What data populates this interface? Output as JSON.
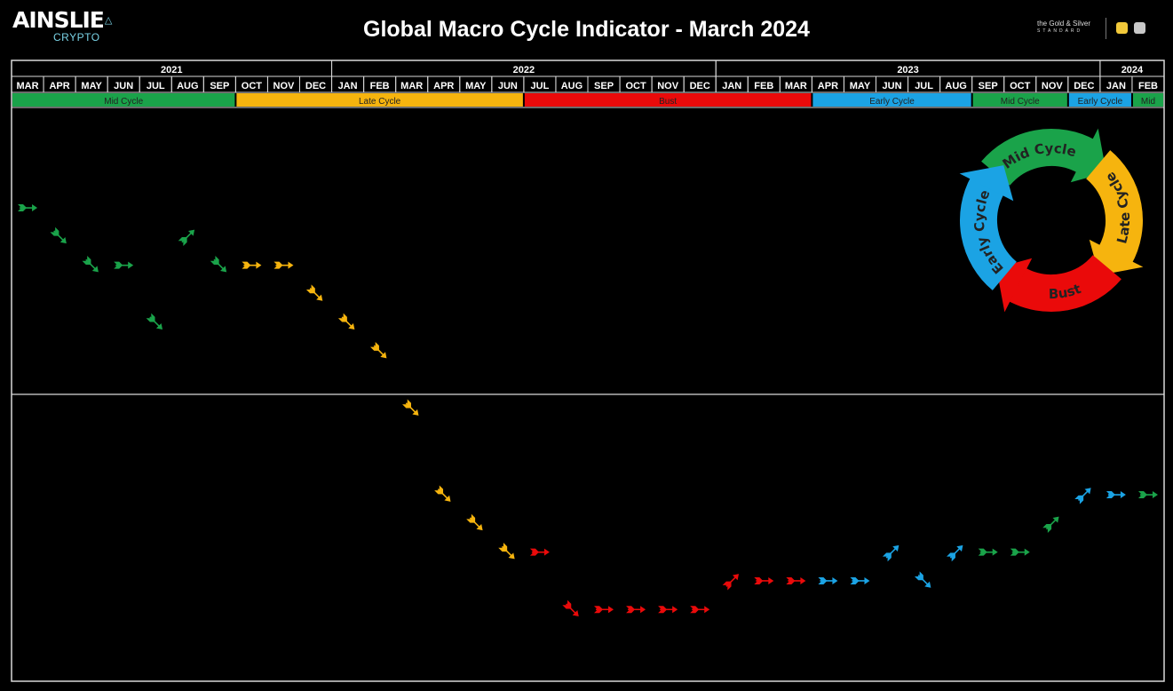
{
  "header": {
    "logo_main": "AINSLIE",
    "logo_sub": "CRYPTO",
    "title": "Global Macro Cycle Indicator - March 2024",
    "partner_line1": "the Gold & Silver",
    "partner_line2": "STANDARD"
  },
  "colors": {
    "mid": "#1aa34a",
    "late": "#f6b40e",
    "bust": "#ea0a0a",
    "early": "#1ba3e4",
    "grid": "#d9d9d9"
  },
  "chart_data": {
    "type": "scatter",
    "title": "Global Macro Cycle Indicator - March 2024",
    "years": [
      {
        "label": "2021",
        "months": 10
      },
      {
        "label": "2022",
        "months": 12
      },
      {
        "label": "2023",
        "months": 12
      },
      {
        "label": "2024",
        "months": 2
      }
    ],
    "months": [
      "MAR",
      "APR",
      "MAY",
      "JUN",
      "JUL",
      "AUG",
      "SEP",
      "OCT",
      "NOV",
      "DEC",
      "JAN",
      "FEB",
      "MAR",
      "APR",
      "MAY",
      "JUN",
      "JUL",
      "AUG",
      "SEP",
      "OCT",
      "NOV",
      "DEC",
      "JAN",
      "FEB",
      "MAR",
      "APR",
      "MAY",
      "JUN",
      "JUL",
      "AUG",
      "SEP",
      "OCT",
      "NOV",
      "DEC",
      "JAN",
      "FEB"
    ],
    "phases": [
      {
        "label": "Mid Cycle",
        "phase": "mid",
        "months": 7
      },
      {
        "label": "Late Cycle",
        "phase": "late",
        "months": 9
      },
      {
        "label": "Bust",
        "phase": "bust",
        "months": 9
      },
      {
        "label": "Early Cycle",
        "phase": "early",
        "months": 5
      },
      {
        "label": "Mid Cycle",
        "phase": "mid",
        "months": 3
      },
      {
        "label": "Early Cycle",
        "phase": "early",
        "months": 2
      },
      {
        "label": "Mid",
        "phase": "mid",
        "months": 1
      }
    ],
    "ylim": [
      -10,
      10
    ],
    "grid": "horizontal center line",
    "points": [
      {
        "level": 6.5,
        "dir": "flat",
        "phase": "mid"
      },
      {
        "level": 5.5,
        "dir": "down",
        "phase": "mid"
      },
      {
        "level": 4.5,
        "dir": "down",
        "phase": "mid"
      },
      {
        "level": 4.5,
        "dir": "flat",
        "phase": "mid"
      },
      {
        "level": 2.5,
        "dir": "down",
        "phase": "mid"
      },
      {
        "level": 5.5,
        "dir": "up",
        "phase": "mid"
      },
      {
        "level": 4.5,
        "dir": "down",
        "phase": "mid"
      },
      {
        "level": 4.5,
        "dir": "flat",
        "phase": "late"
      },
      {
        "level": 4.5,
        "dir": "flat",
        "phase": "late"
      },
      {
        "level": 3.5,
        "dir": "down",
        "phase": "late"
      },
      {
        "level": 2.5,
        "dir": "down",
        "phase": "late"
      },
      {
        "level": 1.5,
        "dir": "down",
        "phase": "late"
      },
      {
        "level": -0.5,
        "dir": "down",
        "phase": "late"
      },
      {
        "level": -3.5,
        "dir": "down",
        "phase": "late"
      },
      {
        "level": -4.5,
        "dir": "down",
        "phase": "late"
      },
      {
        "level": -5.5,
        "dir": "down",
        "phase": "late"
      },
      {
        "level": -5.5,
        "dir": "flat",
        "phase": "bust"
      },
      {
        "level": -7.5,
        "dir": "down",
        "phase": "bust"
      },
      {
        "level": -7.5,
        "dir": "flat",
        "phase": "bust"
      },
      {
        "level": -7.5,
        "dir": "flat",
        "phase": "bust"
      },
      {
        "level": -7.5,
        "dir": "flat",
        "phase": "bust"
      },
      {
        "level": -7.5,
        "dir": "flat",
        "phase": "bust"
      },
      {
        "level": -6.5,
        "dir": "up",
        "phase": "bust"
      },
      {
        "level": -6.5,
        "dir": "flat",
        "phase": "bust"
      },
      {
        "level": -6.5,
        "dir": "flat",
        "phase": "bust"
      },
      {
        "level": -6.5,
        "dir": "flat",
        "phase": "early"
      },
      {
        "level": -6.5,
        "dir": "flat",
        "phase": "early"
      },
      {
        "level": -5.5,
        "dir": "up",
        "phase": "early"
      },
      {
        "level": -6.5,
        "dir": "down",
        "phase": "early"
      },
      {
        "level": -5.5,
        "dir": "up",
        "phase": "early"
      },
      {
        "level": -5.5,
        "dir": "flat",
        "phase": "mid"
      },
      {
        "level": -5.5,
        "dir": "flat",
        "phase": "mid"
      },
      {
        "level": -4.5,
        "dir": "up",
        "phase": "mid"
      },
      {
        "level": -3.5,
        "dir": "up",
        "phase": "early"
      },
      {
        "level": -3.5,
        "dir": "flat",
        "phase": "early"
      },
      {
        "level": -3.5,
        "dir": "flat",
        "phase": "mid"
      }
    ],
    "wheel": [
      {
        "label": "Mid Cycle",
        "phase": "mid"
      },
      {
        "label": "Late Cycle",
        "phase": "late"
      },
      {
        "label": "Bust",
        "phase": "bust"
      },
      {
        "label": "Early Cycle",
        "phase": "early"
      }
    ]
  }
}
